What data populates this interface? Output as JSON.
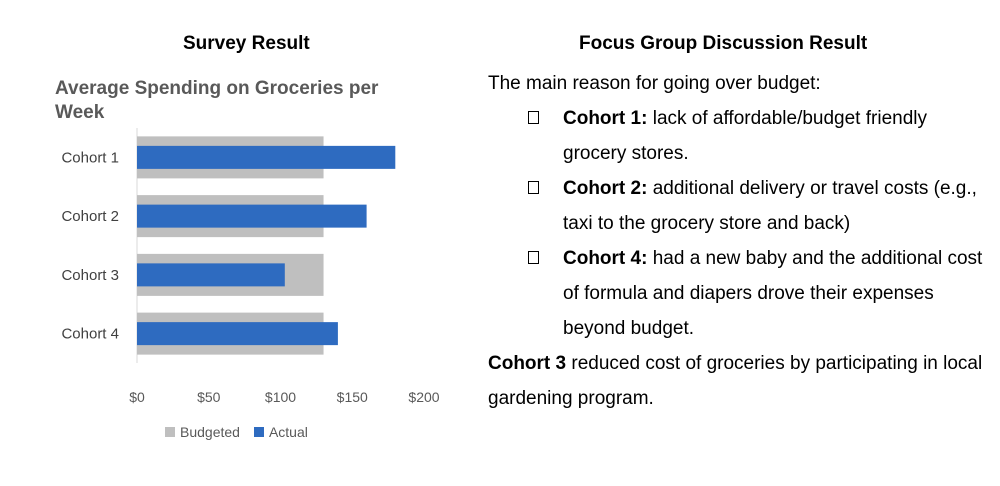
{
  "left": {
    "heading": "Survey Result"
  },
  "right": {
    "heading": "Focus Group Discussion Result",
    "intro": "The main reason for going over budget:",
    "bullets": [
      {
        "cohort": "Cohort 1:",
        "text": " lack of affordable/budget friendly grocery stores."
      },
      {
        "cohort": "Cohort 2:",
        "text": " additional delivery or travel costs (e.g., taxi to the grocery store and back)"
      },
      {
        "cohort": "Cohort 4:",
        "text": " had a new baby and the additional cost of formula and diapers drove their expenses beyond budget."
      }
    ],
    "closing_bold": "Cohort 3",
    "closing_text": " reduced cost of groceries by participating in local gardening program."
  },
  "chart_data": {
    "type": "bar",
    "orientation": "horizontal",
    "title": "Average Spending on Groceries per Week",
    "categories": [
      "Cohort 1",
      "Cohort 2",
      "Cohort 3",
      "Cohort 4"
    ],
    "series": [
      {
        "name": "Budgeted",
        "values": [
          130,
          130,
          130,
          130
        ],
        "color": "#bfbfbf"
      },
      {
        "name": "Actual",
        "values": [
          180,
          160,
          103,
          140
        ],
        "color": "#2e6bc0"
      }
    ],
    "xticks": [
      "$0",
      "$50",
      "$100",
      "$150",
      "$200"
    ],
    "xlim": [
      0,
      200
    ],
    "legend": "bottom"
  }
}
